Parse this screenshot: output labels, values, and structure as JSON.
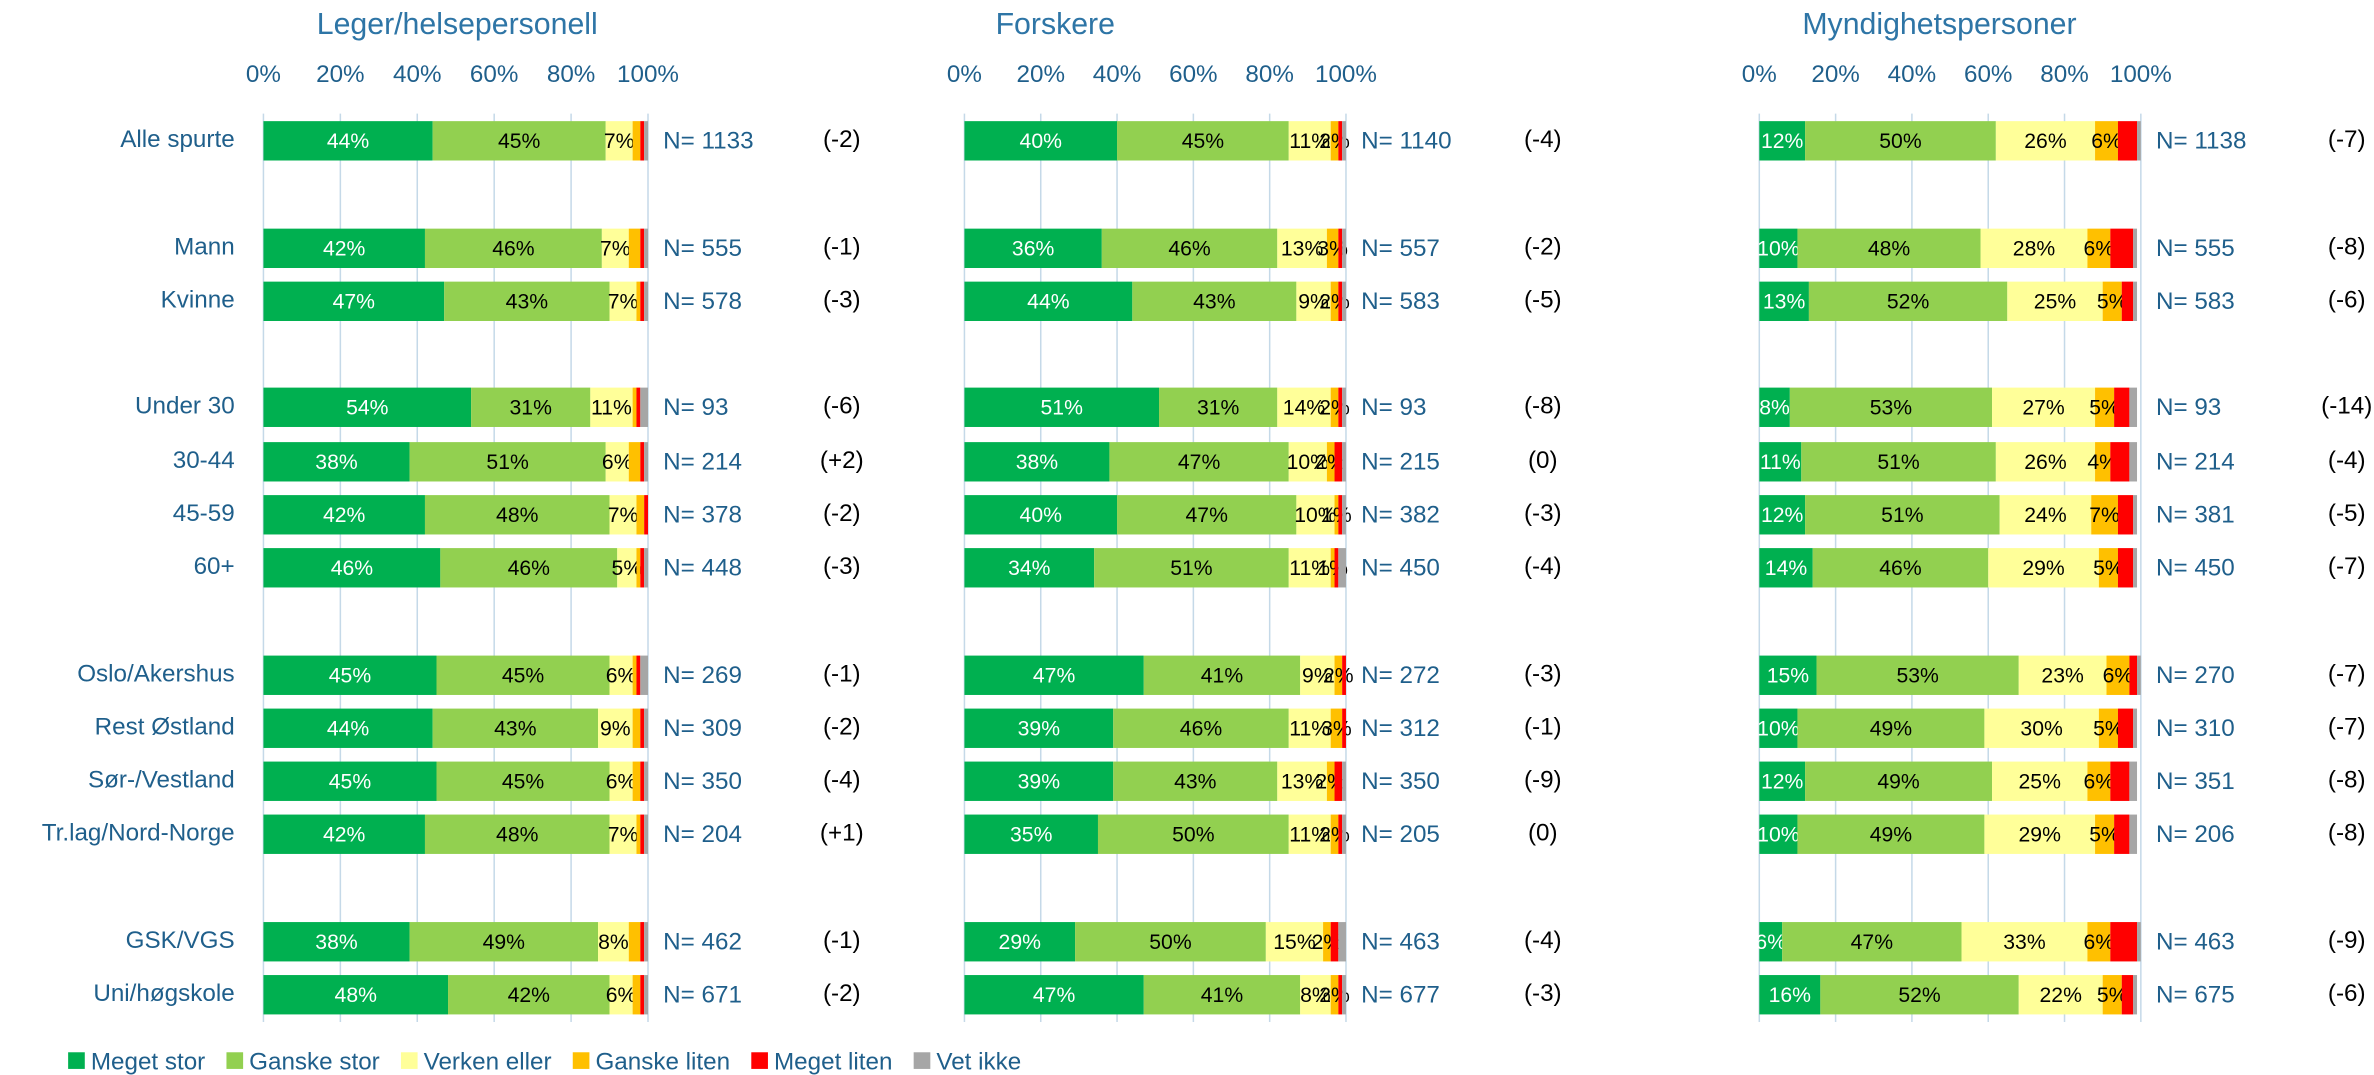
{
  "chart_data": {
    "type": "bar",
    "orientation": "horizontal",
    "stacked": true,
    "grid": true,
    "legend": "bottom",
    "categories": [
      "Alle spurte",
      "Mann",
      "Kvinne",
      "Under 30",
      "30-44",
      "45-59",
      "60+",
      "Oslo/Akershus",
      "Rest Østland",
      "Sør-/Vestland",
      "Tr.lag/Nord-Norge",
      "GSK/VGS",
      "Uni/høgskole"
    ],
    "series": [
      {
        "name": "Meget stor",
        "color": "#00b050"
      },
      {
        "name": "Ganske stor",
        "color": "#92d050"
      },
      {
        "name": "Verken eller",
        "color": "#ffff99"
      },
      {
        "name": "Ganske liten",
        "color": "#ffc000"
      },
      {
        "name": "Meget liten",
        "color": "#ff0000"
      },
      {
        "name": "Vet ikke",
        "color": "#a6a6a6"
      }
    ],
    "xlim": [
      0,
      100
    ],
    "xticks": [
      {
        "value": 0,
        "label": "0%"
      },
      {
        "value": 20,
        "label": "20%"
      },
      {
        "value": 40,
        "label": "40%"
      },
      {
        "value": 60,
        "label": "60%"
      },
      {
        "value": 80,
        "label": "80%"
      },
      {
        "value": 100,
        "label": "100%"
      }
    ],
    "panels": [
      {
        "title": "Leger/helsepersonell",
        "series": [
          {
            "values": [
              44,
              42,
              47,
              54,
              38,
              42,
              46,
              45,
              44,
              45,
              42,
              38,
              48
            ],
            "value_labels": [
              "44%",
              "42%",
              "47%",
              "54%",
              "38%",
              "42%",
              "46%",
              "45%",
              "44%",
              "45%",
              "42%",
              "38%",
              "48%"
            ]
          },
          {
            "values": [
              45,
              46,
              43,
              31,
              51,
              48,
              46,
              45,
              43,
              45,
              48,
              49,
              42
            ],
            "value_labels": [
              "45%",
              "46%",
              "43%",
              "31%",
              "51%",
              "48%",
              "46%",
              "45%",
              "43%",
              "45%",
              "48%",
              "49%",
              "42%"
            ]
          },
          {
            "values": [
              7,
              7,
              7,
              11,
              6,
              7,
              5,
              6,
              9,
              6,
              7,
              8,
              6
            ],
            "value_labels": [
              "7%",
              "7%",
              "7%",
              "11%",
              "6%",
              "7%",
              "5%",
              "6%",
              "9%",
              "6%",
              "7%",
              "8%",
              "6%"
            ]
          },
          {
            "values": [
              2,
              3,
              1,
              1,
              3,
              2,
              1,
              1,
              2,
              2,
              1,
              3,
              2
            ]
          },
          {
            "values": [
              1,
              1,
              1,
              1,
              1,
              1,
              1,
              1,
              1,
              1,
              1,
              1,
              1
            ]
          },
          {
            "values": [
              1,
              1,
              1,
              2,
              1,
              0,
              1,
              2,
              1,
              1,
              1,
              1,
              1
            ]
          }
        ],
        "n_labels": [
          "N= 1133",
          "N= 555",
          "N= 578",
          "N= 93",
          "N= 214",
          "N= 378",
          "N= 448",
          "N= 269",
          "N= 309",
          "N= 350",
          "N= 204",
          "N= 462",
          "N= 671"
        ],
        "changes": [
          "(-2)",
          "(-1)",
          "(-3)",
          "(-6)",
          "(+2)",
          "(-2)",
          "(-3)",
          "(-1)",
          "(-2)",
          "(-4)",
          "(+1)",
          "(-1)",
          "(-2)"
        ]
      },
      {
        "title": "Forskere",
        "series": [
          {
            "values": [
              40,
              36,
              44,
              51,
              38,
              40,
              34,
              47,
              39,
              39,
              35,
              29,
              47
            ],
            "value_labels": [
              "40%",
              "36%",
              "44%",
              "51%",
              "38%",
              "40%",
              "34%",
              "47%",
              "39%",
              "39%",
              "35%",
              "29%",
              "47%"
            ]
          },
          {
            "values": [
              45,
              46,
              43,
              31,
              47,
              47,
              51,
              41,
              46,
              43,
              50,
              50,
              41
            ],
            "value_labels": [
              "45%",
              "46%",
              "43%",
              "31%",
              "47%",
              "47%",
              "51%",
              "41%",
              "46%",
              "43%",
              "50%",
              "50%",
              "41%"
            ]
          },
          {
            "values": [
              11,
              13,
              9,
              14,
              10,
              10,
              11,
              9,
              11,
              13,
              11,
              15,
              8
            ],
            "value_labels": [
              "11%",
              "13%",
              "9%",
              "14%",
              "10%",
              "10%",
              "11%",
              "9%",
              "11%",
              "13%",
              "11%",
              "15%",
              "8%"
            ]
          },
          {
            "values": [
              2,
              3,
              2,
              2,
              2,
              1,
              1,
              2,
              3,
              2,
              2,
              2,
              2
            ],
            "value_labels": [
              "2%",
              "3%",
              "2%",
              "2%",
              "2%",
              "1%",
              "1%",
              "2%",
              "3%",
              "2%",
              "2%",
              "2%",
              "2%"
            ]
          },
          {
            "values": [
              1,
              1,
              1,
              1,
              2,
              1,
              1,
              1,
              1,
              2,
              1,
              2,
              1
            ]
          },
          {
            "values": [
              1,
              1,
              1,
              1,
              1,
              1,
              2,
              0,
              0,
              1,
              1,
              2,
              1
            ]
          }
        ],
        "n_labels": [
          "N= 1140",
          "N= 557",
          "N= 583",
          "N= 93",
          "N= 215",
          "N= 382",
          "N= 450",
          "N= 272",
          "N= 312",
          "N= 350",
          "N= 205",
          "N= 463",
          "N= 677"
        ],
        "changes": [
          "(-4)",
          "(-2)",
          "(-5)",
          "(-8)",
          "(0)",
          "(-3)",
          "(-4)",
          "(-3)",
          "(-1)",
          "(-9)",
          "(0)",
          "(-4)",
          "(-3)"
        ]
      },
      {
        "title": "Myndighetspersoner",
        "series": [
          {
            "values": [
              12,
              10,
              13,
              8,
              11,
              12,
              14,
              15,
              10,
              12,
              10,
              6,
              16
            ],
            "value_labels": [
              "12%",
              "10%",
              "13%",
              "8%",
              "11%",
              "12%",
              "14%",
              "15%",
              "10%",
              "12%",
              "10%",
              "6%",
              "16%"
            ]
          },
          {
            "values": [
              50,
              48,
              52,
              53,
              51,
              51,
              46,
              53,
              49,
              49,
              49,
              47,
              52
            ],
            "value_labels": [
              "50%",
              "48%",
              "52%",
              "53%",
              "51%",
              "51%",
              "46%",
              "53%",
              "49%",
              "49%",
              "49%",
              "47%",
              "52%"
            ]
          },
          {
            "values": [
              26,
              28,
              25,
              27,
              26,
              24,
              29,
              23,
              30,
              25,
              29,
              33,
              22
            ],
            "value_labels": [
              "26%",
              "28%",
              "25%",
              "27%",
              "26%",
              "24%",
              "29%",
              "23%",
              "30%",
              "25%",
              "29%",
              "33%",
              "22%"
            ]
          },
          {
            "values": [
              6,
              6,
              5,
              5,
              4,
              7,
              5,
              6,
              5,
              6,
              5,
              6,
              5
            ],
            "value_labels": [
              "6%",
              "6%",
              "5%",
              "5%",
              "4%",
              "7%",
              "5%",
              "6%",
              "5%",
              "6%",
              "5%",
              "6%",
              "5%"
            ]
          },
          {
            "values": [
              5,
              6,
              3,
              4,
              5,
              4,
              4,
              2,
              4,
              5,
              4,
              7,
              3
            ]
          },
          {
            "values": [
              1,
              1,
              1,
              2,
              2,
              1,
              1,
              1,
              1,
              2,
              2,
              1,
              1
            ]
          }
        ],
        "n_labels": [
          "N= 1138",
          "N= 555",
          "N= 583",
          "N= 93",
          "N= 214",
          "N= 381",
          "N= 450",
          "N= 270",
          "N= 310",
          "N= 351",
          "N= 206",
          "N= 463",
          "N= 675"
        ],
        "changes": [
          "(-7)",
          "(-8)",
          "(-6)",
          "(-14)",
          "(-4)",
          "(-5)",
          "(-7)",
          "(-7)",
          "(-7)",
          "(-8)",
          "(-8)",
          "(-9)",
          "(-6)"
        ]
      }
    ]
  }
}
